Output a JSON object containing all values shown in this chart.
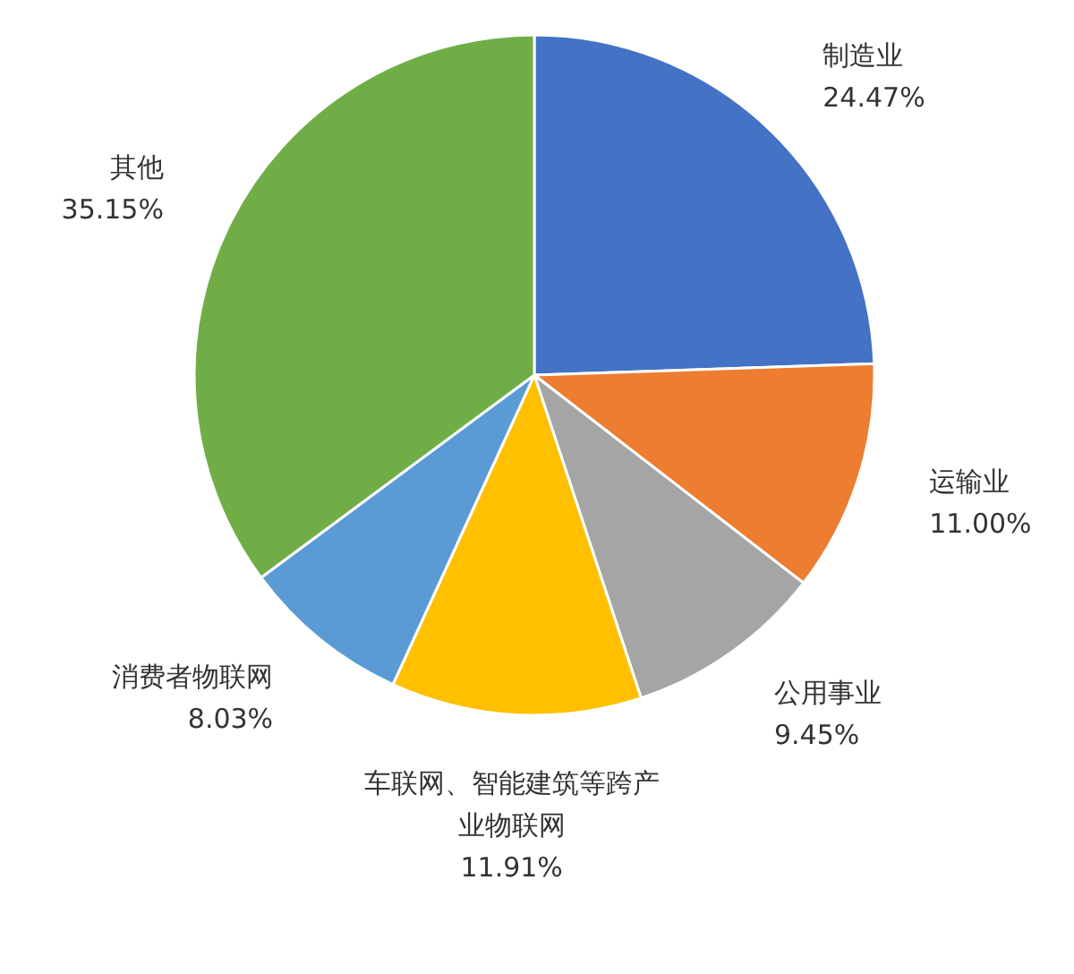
{
  "chart_data": {
    "type": "pie",
    "categories": [
      "制造业",
      "运输业",
      "公用事业",
      "车联网、智能建筑等跨产业物联网",
      "消费者物联网",
      "其他"
    ],
    "values": [
      24.47,
      11.0,
      9.45,
      11.91,
      8.03,
      35.15
    ],
    "colors": [
      "#4472c4",
      "#ed7d31",
      "#a5a5a5",
      "#ffc000",
      "#5b9bd5",
      "#70ad47"
    ],
    "value_labels": [
      "24.47%",
      "11.00%",
      "9.45%",
      "11.91%",
      "8.03%",
      "35.15%"
    ]
  }
}
